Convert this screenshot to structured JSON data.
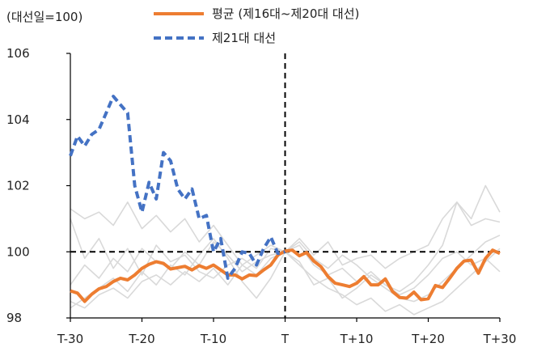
{
  "chart_data": {
    "type": "line",
    "unit_label": "(대선일=100)",
    "xlim": [
      -30,
      30
    ],
    "ylim": [
      98,
      106
    ],
    "yticks": [
      {
        "v": 98,
        "label": "98"
      },
      {
        "v": 100,
        "label": "100"
      },
      {
        "v": 102,
        "label": "102"
      },
      {
        "v": 104,
        "label": "104"
      },
      {
        "v": 106,
        "label": "106"
      }
    ],
    "xticks": [
      {
        "v": -30,
        "label": "T-30"
      },
      {
        "v": -20,
        "label": "T-20"
      },
      {
        "v": -10,
        "label": "T-10"
      },
      {
        "v": 0,
        "label": "T"
      },
      {
        "v": 10,
        "label": "T+10"
      },
      {
        "v": 20,
        "label": "T+20"
      },
      {
        "v": 30,
        "label": "T+30"
      }
    ],
    "reference_lines": {
      "y": 100,
      "x": 0
    },
    "colors": {
      "average": "#ED7D31",
      "current": "#4472C4",
      "past": "#D9D9D9",
      "ref": "#000000"
    },
    "series": [
      {
        "name": "평균 (제16대~제20대 대선)",
        "style": "solid",
        "x": [
          -30,
          -29,
          -28,
          -27,
          -26,
          -25,
          -24,
          -23,
          -22,
          -21,
          -20,
          -19,
          -18,
          -17,
          -16,
          -15,
          -14,
          -13,
          -12,
          -11,
          -10,
          -9,
          -8,
          -7,
          -6,
          -5,
          -4,
          -3,
          -2,
          -1,
          0,
          1,
          2,
          3,
          4,
          5,
          6,
          7,
          8,
          9,
          10,
          11,
          12,
          13,
          14,
          15,
          16,
          17,
          18,
          19,
          20,
          21,
          22,
          23,
          24,
          25,
          26,
          27,
          28,
          29,
          30
        ],
        "y": [
          98.82,
          98.75,
          98.5,
          98.72,
          98.88,
          98.95,
          99.1,
          99.2,
          99.15,
          99.3,
          99.5,
          99.62,
          99.7,
          99.65,
          99.48,
          99.52,
          99.56,
          99.45,
          99.58,
          99.5,
          99.6,
          99.45,
          99.3,
          99.3,
          99.18,
          99.3,
          99.28,
          99.45,
          99.6,
          99.9,
          100.02,
          100.05,
          99.88,
          99.98,
          99.72,
          99.55,
          99.25,
          99.05,
          99.0,
          98.95,
          99.05,
          99.25,
          99.0,
          99.0,
          99.18,
          98.8,
          98.62,
          98.6,
          98.78,
          98.55,
          98.58,
          98.98,
          98.92,
          99.2,
          99.5,
          99.72,
          99.75,
          99.35,
          99.8,
          100.05,
          99.95
        ]
      },
      {
        "name": "제21대 대선",
        "style": "dashed",
        "x": [
          -30,
          -29,
          -28,
          -27,
          -26,
          -25,
          -24,
          -23,
          -22,
          -21,
          -20,
          -19,
          -18,
          -17,
          -16,
          -15,
          -14,
          -13,
          -12,
          -11,
          -10,
          -9,
          -8,
          -7,
          -6,
          -5,
          -4,
          -3,
          -2,
          -1,
          0
        ],
        "y": [
          102.9,
          103.5,
          103.2,
          103.55,
          103.7,
          104.2,
          104.7,
          104.45,
          104.2,
          102.0,
          101.2,
          102.1,
          101.6,
          103.0,
          102.75,
          101.9,
          101.6,
          101.9,
          101.0,
          101.1,
          100.0,
          100.4,
          99.2,
          99.5,
          100.0,
          99.95,
          99.6,
          100.1,
          100.45,
          99.95,
          100.0
        ]
      }
    ],
    "past_elections": [
      {
        "x": [
          -30,
          -28,
          -26,
          -24,
          -22,
          -20,
          -18,
          -16,
          -14,
          -12,
          -10,
          -8,
          -6,
          -4,
          -2,
          0,
          2,
          4,
          6,
          8,
          10,
          12,
          14,
          16,
          18,
          20,
          22,
          24,
          26,
          28,
          30
        ],
        "y": [
          101.3,
          101.0,
          101.2,
          100.8,
          101.5,
          100.7,
          101.1,
          100.6,
          101.0,
          100.3,
          100.8,
          100.2,
          99.6,
          99.9,
          100.2,
          100.0,
          100.4,
          99.9,
          100.3,
          99.6,
          99.8,
          99.9,
          99.5,
          99.8,
          100.0,
          100.2,
          101.0,
          101.5,
          100.8,
          101.0,
          100.9
        ]
      },
      {
        "x": [
          -30,
          -28,
          -26,
          -24,
          -22,
          -20,
          -18,
          -16,
          -14,
          -12,
          -10,
          -8,
          -6,
          -4,
          -2,
          0,
          2,
          4,
          6,
          8,
          10,
          12,
          14,
          16,
          18,
          20,
          22,
          24,
          26,
          28,
          30
        ],
        "y": [
          98.5,
          98.3,
          98.7,
          98.9,
          98.6,
          99.1,
          99.3,
          99.0,
          99.4,
          99.1,
          99.5,
          99.0,
          99.6,
          99.3,
          99.8,
          100.0,
          99.6,
          99.2,
          98.9,
          98.7,
          98.4,
          98.6,
          98.2,
          98.4,
          98.1,
          98.3,
          98.5,
          98.9,
          99.3,
          99.7,
          100.1
        ]
      },
      {
        "x": [
          -30,
          -28,
          -26,
          -24,
          -22,
          -20,
          -18,
          -16,
          -14,
          -12,
          -10,
          -8,
          -6,
          -4,
          -2,
          0,
          2,
          4,
          6,
          8,
          10,
          12,
          14,
          16,
          18,
          20,
          22,
          24,
          26,
          28,
          30
        ],
        "y": [
          101.0,
          99.8,
          100.4,
          99.5,
          100.1,
          99.3,
          100.2,
          99.7,
          99.9,
          99.4,
          99.2,
          99.6,
          99.8,
          99.5,
          100.1,
          100.0,
          99.7,
          99.0,
          99.2,
          98.6,
          98.9,
          99.3,
          99.0,
          98.8,
          99.1,
          99.6,
          100.2,
          101.5,
          101.0,
          102.0,
          101.2
        ]
      },
      {
        "x": [
          -30,
          -28,
          -26,
          -24,
          -22,
          -20,
          -18,
          -16,
          -14,
          -12,
          -10,
          -8,
          -6,
          -4,
          -2,
          0,
          2,
          4,
          6,
          8,
          10,
          12,
          14,
          16,
          18,
          20,
          22,
          24,
          26,
          28,
          30
        ],
        "y": [
          99.0,
          99.6,
          99.2,
          99.8,
          99.4,
          100.1,
          99.7,
          99.5,
          100.0,
          99.6,
          100.3,
          99.9,
          99.4,
          99.7,
          99.9,
          100.0,
          100.2,
          99.6,
          99.3,
          99.5,
          99.1,
          99.4,
          99.0,
          98.7,
          98.9,
          99.3,
          99.8,
          100.0,
          99.6,
          99.8,
          99.4
        ]
      },
      {
        "x": [
          -30,
          -28,
          -26,
          -24,
          -22,
          -20,
          -18,
          -16,
          -14,
          -12,
          -10,
          -8,
          -6,
          -4,
          -2,
          0,
          2,
          4,
          6,
          8,
          10,
          12,
          14,
          16,
          18,
          20,
          22,
          24,
          26,
          28,
          30
        ],
        "y": [
          98.3,
          98.6,
          98.9,
          99.2,
          98.8,
          99.4,
          99.0,
          99.6,
          99.3,
          99.9,
          100.4,
          99.8,
          99.1,
          98.6,
          99.2,
          100.0,
          100.3,
          99.8,
          99.5,
          99.9,
          99.6,
          99.2,
          98.9,
          98.6,
          98.5,
          98.7,
          99.1,
          99.5,
          99.9,
          100.3,
          100.5
        ]
      }
    ]
  }
}
